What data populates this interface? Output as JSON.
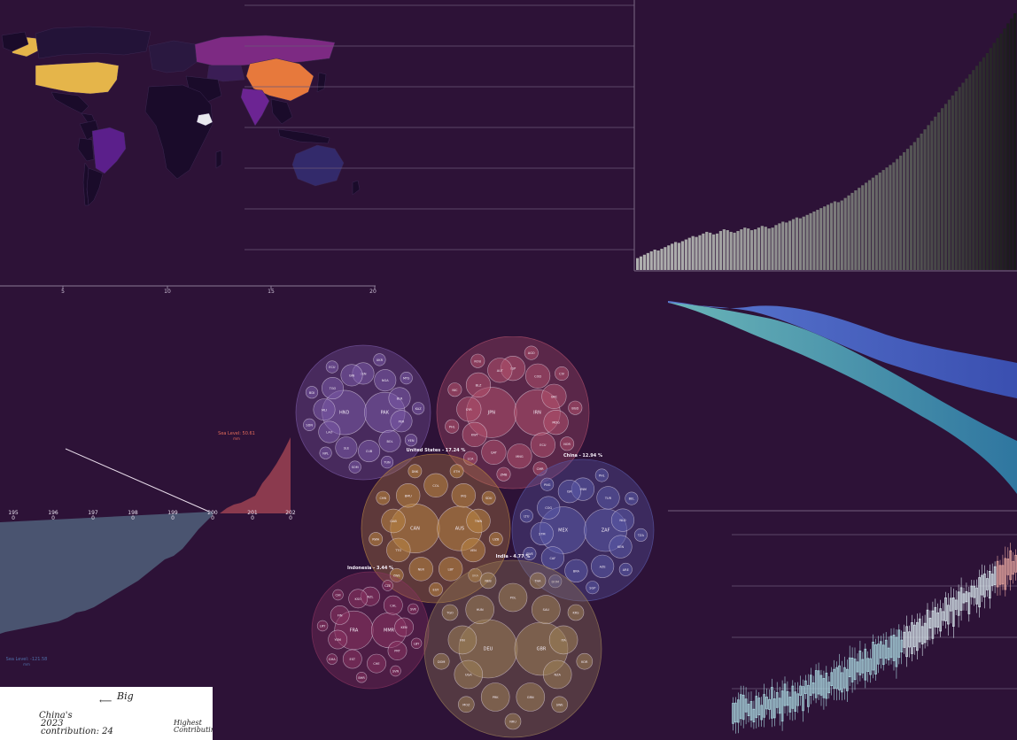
{
  "world_map": {
    "highlight_colors": {
      "usa": "#e5b54a",
      "china": "#e7793c",
      "russia": "#7d2a83",
      "brazil": "#5b1f8b",
      "india": "#6c2493",
      "australia": "#332a6b",
      "greenland": "#e5b54a",
      "default": "#1a0b2a"
    },
    "axis_ticks": [
      "5",
      "10",
      "15",
      "20"
    ]
  },
  "chart_data": [
    {
      "type": "bar",
      "title": "",
      "xlabel": "",
      "ylabel": "",
      "grid": true,
      "values": [
        14,
        16,
        18,
        20,
        22,
        24,
        23,
        25,
        27,
        29,
        31,
        33,
        32,
        34,
        36,
        38,
        40,
        39,
        41,
        43,
        45,
        44,
        42,
        43,
        46,
        48,
        47,
        45,
        44,
        46,
        48,
        50,
        49,
        47,
        48,
        50,
        52,
        51,
        49,
        50,
        53,
        55,
        57,
        56,
        58,
        60,
        62,
        61,
        63,
        65,
        67,
        69,
        71,
        73,
        75,
        77,
        79,
        81,
        80,
        82,
        85,
        88,
        91,
        94,
        97,
        100,
        103,
        106,
        109,
        112,
        115,
        118,
        121,
        124,
        127,
        131,
        135,
        139,
        143,
        147,
        151,
        156,
        161,
        166,
        171,
        176,
        181,
        186,
        191,
        196,
        201,
        206,
        211,
        216,
        221,
        226,
        231,
        236,
        241,
        246,
        251,
        256,
        262,
        268,
        274,
        279,
        285,
        291,
        297,
        303
      ]
    },
    {
      "type": "area",
      "name": "sea-level",
      "title": "",
      "x_tick_labels": [
        "195\n0",
        "196\n0",
        "197\n0",
        "198\n0",
        "199\n0",
        "200\n0",
        "201\n0",
        "202\n0"
      ],
      "annotations": {
        "upper": "Sea Level: 50.61",
        "upper_sub": "mm",
        "lower": "Sea Level: -121.58",
        "lower_sub": "mm"
      }
    },
    {
      "type": "other",
      "name": "bubble-clusters",
      "groups": [
        {
          "label": "",
          "color": "#7a5aa6",
          "circles": [
            "HND",
            "PAK",
            "SEN",
            "UKR",
            "NGA",
            "MYS",
            "BLR",
            "KAZ",
            "PER",
            "YEN",
            "BOL",
            "TUN",
            "CUB",
            "SOM",
            "SLE",
            "NPL",
            "LAO",
            "SDN",
            "MLI",
            "BDI",
            "TGO",
            "ECU",
            "GIN"
          ]
        },
        {
          "label": "",
          "color": "#b0506c",
          "circles": [
            "JPN",
            "IRN",
            "ESP",
            "AGO",
            "COD",
            "CIV",
            "GRC",
            "BGD",
            "MDG",
            "NOR",
            "ECU",
            "CMR",
            "MNG",
            "ZMB",
            "QAT",
            "LCA",
            "KWT",
            "PHL",
            "SYR",
            "NIC",
            "BLZ",
            "ROU",
            "AUT"
          ]
        },
        {
          "label": "United States - 17.24 %",
          "color": "#b98542",
          "circles": [
            "CAN",
            "AUS",
            "COL",
            "ETH",
            "IRQ",
            "SDU",
            "TWN",
            "UZB",
            "VEN",
            "UKA",
            "LBY",
            "EGY",
            "NER",
            "ZWE",
            "TTO",
            "RWA",
            "GAB",
            "CHN",
            "BMU",
            "DNK"
          ]
        },
        {
          "label": "China - 12.94 %",
          "color": "#5a5aa8",
          "circles": [
            "MEX",
            "ZAF",
            "VNM",
            "PHL",
            "TUR",
            "BEL",
            "NLD",
            "TZA",
            "KEN",
            "ARE",
            "AZE",
            "SGP",
            "BRA",
            "DOM",
            "CAF",
            "SWE",
            "STM",
            "LTU",
            "COG",
            "PNG",
            "ISR"
          ]
        },
        {
          "label": "Indonesia - 3.44 %",
          "color": "#8a3360",
          "circles": [
            "FRA",
            "MMR",
            "NZL",
            "CZE",
            "CHL",
            "SVK",
            "KEN",
            "LBY",
            "PRT",
            "SVN",
            "CHE",
            "BHR",
            "EST",
            "GHA",
            "YEM",
            "LRY",
            "FIN",
            "CHI",
            "KSO"
          ]
        },
        {
          "label": "India - 4.77 %",
          "color": "#9c8058",
          "circles": [
            "DEU",
            "GBR",
            "POL",
            "THA",
            "SAU",
            "KRS",
            "ITA",
            "KOR",
            "NZA",
            "SWE",
            "GRN",
            "NRU",
            "PRK",
            "MOZ",
            "UGA",
            "DOM",
            "FIN",
            "TGO",
            "HUN",
            "NEB"
          ]
        }
      ]
    },
    {
      "type": "area",
      "name": "dual-bands",
      "title": ""
    },
    {
      "type": "other",
      "name": "candlesticks",
      "title": "",
      "count": 110
    }
  ],
  "note": {
    "big": "Big",
    "china_line1": "China's",
    "china_line2": "2023",
    "china_line3": "contribution: 24",
    "highest_line1": "Highest",
    "highest_line2": "Contributing"
  }
}
